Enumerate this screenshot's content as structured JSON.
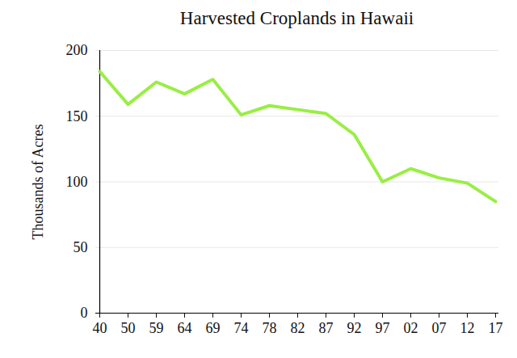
{
  "chart_data": {
    "type": "line",
    "title": "Harvested Croplands in Hawaii",
    "ylabel": "Thousands of Acres",
    "categories": [
      "40",
      "50",
      "59",
      "64",
      "69",
      "74",
      "78",
      "82",
      "87",
      "92",
      "97",
      "02",
      "07",
      "12",
      "17"
    ],
    "values": [
      184,
      159,
      176,
      167,
      178,
      151,
      158,
      155,
      152,
      136,
      100,
      110,
      103,
      99,
      85
    ],
    "color": "#99ee44",
    "ylim": [
      0,
      200
    ],
    "yticks": [
      0,
      50,
      100,
      150,
      200
    ],
    "grid": true
  }
}
